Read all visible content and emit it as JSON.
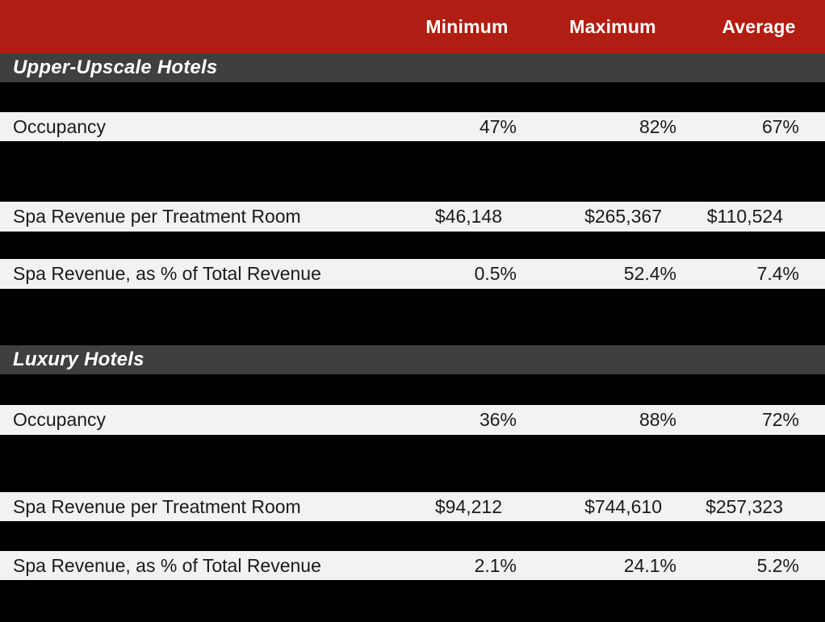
{
  "table": {
    "columns": {
      "minimum": "Minimum",
      "maximum": "Maximum",
      "average": "Average"
    },
    "sections": [
      {
        "title": "Upper-Upscale Hotels",
        "rows": [
          {
            "label": "Occupancy",
            "minimum": "47%",
            "maximum": "82%",
            "average": "67%"
          },
          {
            "label": "Spa Revenue per Treatment Room",
            "minimum": "$46,148",
            "maximum": "$265,367",
            "average": "$110,524"
          },
          {
            "label": "Spa Revenue, as % of Total Revenue",
            "minimum": "0.5%",
            "maximum": "52.4%",
            "average": "7.4%"
          }
        ]
      },
      {
        "title": "Luxury Hotels",
        "rows": [
          {
            "label": "Occupancy",
            "minimum": "36%",
            "maximum": "88%",
            "average": "72%"
          },
          {
            "label": "Spa Revenue per Treatment Room",
            "minimum": "$94,212",
            "maximum": "$744,610",
            "average": "$257,323"
          },
          {
            "label": "Spa Revenue, as % of Total Revenue",
            "minimum": "2.1%",
            "maximum": "24.1%",
            "average": "5.2%"
          }
        ]
      }
    ]
  },
  "colors": {
    "header_red": "#b11d12",
    "section_gray": "#3f3f3f",
    "row_light": "#f2f2f2",
    "background_black": "#000000",
    "header_text": "#ffffff",
    "data_text": "#1b1b1b"
  }
}
